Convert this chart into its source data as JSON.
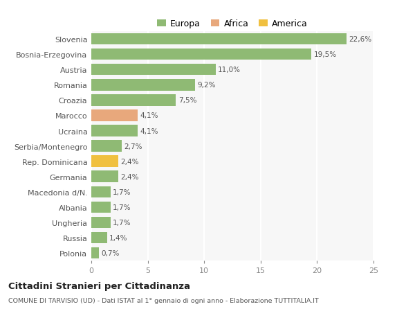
{
  "categories": [
    "Slovenia",
    "Bosnia-Erzegovina",
    "Austria",
    "Romania",
    "Croazia",
    "Marocco",
    "Ucraina",
    "Serbia/Montenegro",
    "Rep. Dominicana",
    "Germania",
    "Macedonia d/N.",
    "Albania",
    "Ungheria",
    "Russia",
    "Polonia"
  ],
  "values": [
    22.6,
    19.5,
    11.0,
    9.2,
    7.5,
    4.1,
    4.1,
    2.7,
    2.4,
    2.4,
    1.7,
    1.7,
    1.7,
    1.4,
    0.7
  ],
  "labels": [
    "22,6%",
    "19,5%",
    "11,0%",
    "9,2%",
    "7,5%",
    "4,1%",
    "4,1%",
    "2,7%",
    "2,4%",
    "2,4%",
    "1,7%",
    "1,7%",
    "1,7%",
    "1,4%",
    "0,7%"
  ],
  "colors": [
    "#8fba74",
    "#8fba74",
    "#8fba74",
    "#8fba74",
    "#8fba74",
    "#e8a87c",
    "#8fba74",
    "#8fba74",
    "#f0c040",
    "#8fba74",
    "#8fba74",
    "#8fba74",
    "#8fba74",
    "#8fba74",
    "#8fba74"
  ],
  "legend_labels": [
    "Europa",
    "Africa",
    "America"
  ],
  "legend_colors": [
    "#8fba74",
    "#e8a87c",
    "#f0c040"
  ],
  "title": "Cittadini Stranieri per Cittadinanza",
  "subtitle": "COMUNE DI TARVISIO (UD) - Dati ISTAT al 1° gennaio di ogni anno - Elaborazione TUTTITALIA.IT",
  "xlim": [
    0,
    25
  ],
  "xticks": [
    0,
    5,
    10,
    15,
    20,
    25
  ],
  "background_color": "#ffffff",
  "plot_bg_color": "#f7f7f7",
  "grid_color": "#ffffff"
}
